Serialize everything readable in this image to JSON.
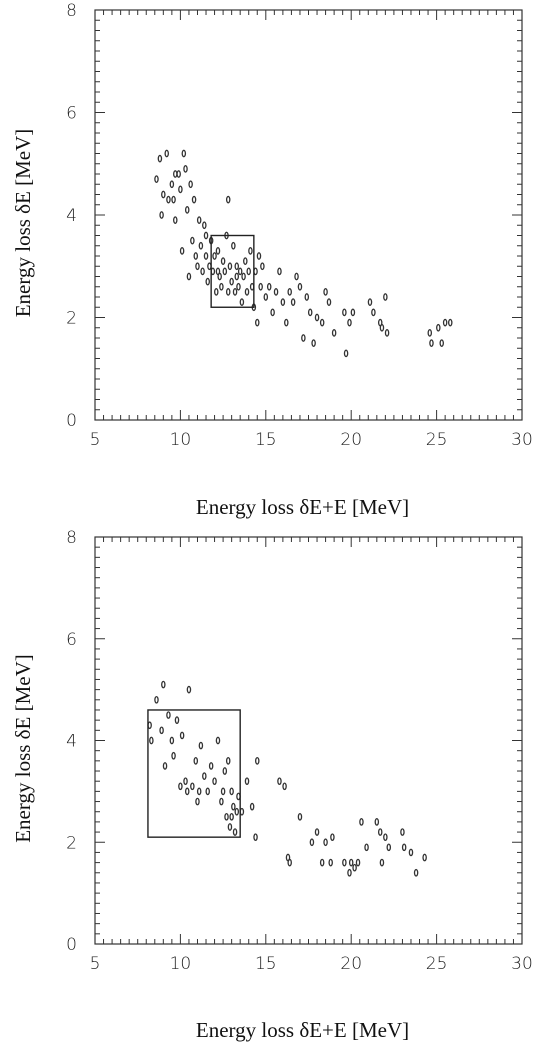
{
  "chart_data": [
    {
      "type": "scatter",
      "xlabel": "Energy loss δE+E [MeV]",
      "ylabel": "Energy loss δE [MeV]",
      "xlim": [
        5,
        30
      ],
      "ylim": [
        0,
        8
      ],
      "xticks": [
        5,
        10,
        15,
        20,
        25,
        30
      ],
      "yticks": [
        0,
        2,
        4,
        6,
        8
      ],
      "grid": false,
      "marker_color": "#333333",
      "selection_box": {
        "x": [
          11.8,
          14.3
        ],
        "y": [
          2.2,
          3.6
        ]
      },
      "points": [
        [
          8.6,
          4.7
        ],
        [
          8.8,
          5.1
        ],
        [
          8.9,
          4.0
        ],
        [
          9.0,
          4.4
        ],
        [
          9.2,
          5.2
        ],
        [
          9.3,
          4.3
        ],
        [
          9.5,
          4.6
        ],
        [
          9.6,
          4.3
        ],
        [
          9.7,
          3.9
        ],
        [
          9.7,
          4.8
        ],
        [
          9.9,
          4.8
        ],
        [
          10.0,
          4.5
        ],
        [
          10.1,
          3.3
        ],
        [
          10.2,
          5.2
        ],
        [
          10.3,
          4.9
        ],
        [
          10.4,
          4.1
        ],
        [
          10.5,
          2.8
        ],
        [
          10.6,
          4.6
        ],
        [
          10.7,
          3.5
        ],
        [
          10.8,
          4.3
        ],
        [
          10.9,
          3.2
        ],
        [
          11.0,
          3.0
        ],
        [
          11.1,
          3.9
        ],
        [
          11.2,
          3.4
        ],
        [
          11.3,
          2.9
        ],
        [
          11.4,
          3.8
        ],
        [
          11.5,
          3.2
        ],
        [
          11.6,
          2.7
        ],
        [
          11.7,
          3.0
        ],
        [
          11.8,
          3.5
        ],
        [
          11.9,
          2.9
        ],
        [
          12.0,
          3.2
        ],
        [
          12.1,
          2.5
        ],
        [
          12.2,
          3.3
        ],
        [
          12.3,
          2.8
        ],
        [
          12.4,
          2.6
        ],
        [
          12.5,
          3.1
        ],
        [
          12.6,
          2.9
        ],
        [
          12.7,
          3.6
        ],
        [
          12.8,
          2.5
        ],
        [
          12.9,
          3.0
        ],
        [
          13.0,
          2.7
        ],
        [
          13.1,
          3.4
        ],
        [
          13.2,
          2.5
        ],
        [
          13.3,
          3.0
        ],
        [
          13.4,
          2.6
        ],
        [
          13.5,
          2.9
        ],
        [
          13.6,
          2.3
        ],
        [
          13.7,
          2.8
        ],
        [
          13.8,
          3.1
        ],
        [
          13.9,
          2.5
        ],
        [
          14.0,
          2.9
        ],
        [
          14.1,
          3.3
        ],
        [
          14.2,
          2.6
        ],
        [
          14.3,
          2.2
        ],
        [
          14.4,
          2.9
        ],
        [
          14.5,
          1.9
        ],
        [
          14.6,
          3.2
        ],
        [
          14.7,
          2.6
        ],
        [
          14.8,
          3.0
        ],
        [
          15.0,
          2.4
        ],
        [
          15.2,
          2.6
        ],
        [
          15.4,
          2.1
        ],
        [
          15.6,
          2.5
        ],
        [
          15.8,
          2.9
        ],
        [
          16.0,
          2.3
        ],
        [
          16.2,
          1.9
        ],
        [
          16.4,
          2.5
        ],
        [
          16.6,
          2.3
        ],
        [
          16.8,
          2.8
        ],
        [
          17.0,
          2.6
        ],
        [
          17.2,
          1.6
        ],
        [
          17.4,
          2.4
        ],
        [
          17.6,
          2.1
        ],
        [
          17.8,
          1.5
        ],
        [
          18.0,
          2.0
        ],
        [
          18.3,
          1.9
        ],
        [
          18.5,
          2.5
        ],
        [
          18.7,
          2.3
        ],
        [
          19.0,
          1.7
        ],
        [
          19.6,
          2.1
        ],
        [
          19.7,
          1.3
        ],
        [
          19.9,
          1.9
        ],
        [
          20.1,
          2.1
        ],
        [
          21.1,
          2.3
        ],
        [
          21.3,
          2.1
        ],
        [
          21.7,
          1.9
        ],
        [
          21.8,
          1.8
        ],
        [
          22.0,
          2.4
        ],
        [
          22.1,
          1.7
        ],
        [
          24.6,
          1.7
        ],
        [
          24.7,
          1.5
        ],
        [
          25.1,
          1.8
        ],
        [
          25.3,
          1.5
        ],
        [
          25.5,
          1.9
        ],
        [
          25.8,
          1.9
        ],
        [
          12.8,
          4.3
        ],
        [
          12.2,
          2.9
        ],
        [
          13.3,
          2.8
        ],
        [
          11.5,
          3.6
        ]
      ]
    },
    {
      "type": "scatter",
      "xlabel": "Energy loss δE+E [MeV]",
      "ylabel": "Energy loss δE [MeV]",
      "xlim": [
        5,
        30
      ],
      "ylim": [
        0,
        8
      ],
      "xticks": [
        5,
        10,
        15,
        20,
        25,
        30
      ],
      "yticks": [
        0,
        2,
        4,
        6,
        8
      ],
      "grid": false,
      "marker_color": "#333333",
      "selection_box": {
        "x": [
          8.1,
          13.5
        ],
        "y": [
          2.1,
          4.6
        ]
      },
      "points": [
        [
          8.2,
          4.3
        ],
        [
          8.3,
          4.0
        ],
        [
          8.6,
          4.8
        ],
        [
          8.9,
          4.2
        ],
        [
          9.0,
          5.1
        ],
        [
          9.1,
          3.5
        ],
        [
          9.3,
          4.5
        ],
        [
          9.5,
          4.0
        ],
        [
          9.8,
          4.4
        ],
        [
          10.0,
          3.1
        ],
        [
          10.1,
          4.1
        ],
        [
          10.3,
          3.2
        ],
        [
          10.4,
          3.0
        ],
        [
          10.5,
          5.0
        ],
        [
          10.7,
          3.1
        ],
        [
          10.9,
          3.6
        ],
        [
          11.0,
          2.8
        ],
        [
          11.2,
          3.9
        ],
        [
          11.4,
          3.3
        ],
        [
          11.6,
          3.0
        ],
        [
          11.8,
          3.5
        ],
        [
          12.0,
          3.2
        ],
        [
          12.2,
          4.0
        ],
        [
          12.4,
          2.8
        ],
        [
          12.6,
          3.4
        ],
        [
          12.7,
          2.5
        ],
        [
          12.8,
          3.6
        ],
        [
          12.9,
          2.3
        ],
        [
          13.0,
          3.0
        ],
        [
          13.1,
          2.7
        ],
        [
          13.3,
          2.6
        ],
        [
          13.4,
          2.9
        ],
        [
          13.6,
          2.6
        ],
        [
          13.9,
          3.2
        ],
        [
          14.2,
          2.7
        ],
        [
          14.4,
          2.1
        ],
        [
          14.5,
          3.6
        ],
        [
          15.8,
          3.2
        ],
        [
          16.1,
          3.1
        ],
        [
          16.3,
          1.7
        ],
        [
          16.4,
          1.6
        ],
        [
          17.0,
          2.5
        ],
        [
          17.7,
          2.0
        ],
        [
          18.0,
          2.2
        ],
        [
          18.3,
          1.6
        ],
        [
          18.5,
          2.0
        ],
        [
          18.8,
          1.6
        ],
        [
          18.9,
          2.1
        ],
        [
          19.6,
          1.6
        ],
        [
          19.9,
          1.4
        ],
        [
          20.0,
          1.6
        ],
        [
          20.2,
          1.5
        ],
        [
          20.4,
          1.6
        ],
        [
          20.6,
          2.4
        ],
        [
          20.9,
          1.9
        ],
        [
          21.5,
          2.4
        ],
        [
          21.7,
          2.2
        ],
        [
          21.8,
          1.6
        ],
        [
          22.0,
          2.1
        ],
        [
          22.2,
          1.9
        ],
        [
          23.0,
          2.2
        ],
        [
          23.1,
          1.9
        ],
        [
          23.5,
          1.8
        ],
        [
          23.8,
          1.4
        ],
        [
          24.3,
          1.7
        ],
        [
          13.2,
          2.2
        ],
        [
          13.0,
          2.5
        ],
        [
          9.6,
          3.7
        ],
        [
          11.1,
          3.0
        ],
        [
          12.5,
          3.0
        ]
      ]
    }
  ]
}
